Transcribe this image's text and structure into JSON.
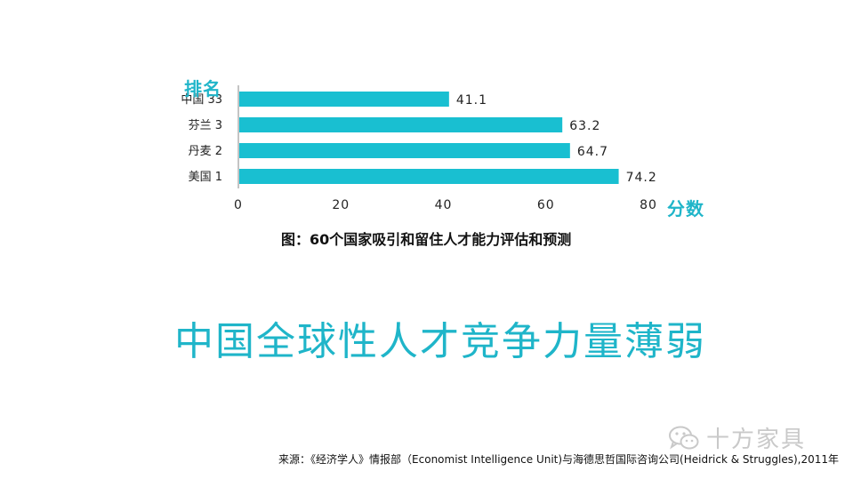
{
  "chart_data": {
    "type": "bar",
    "orientation": "horizontal",
    "categories": [
      "中国 33",
      "芬兰 3",
      "丹麦 2",
      "美国 1"
    ],
    "values": [
      41.1,
      63.2,
      64.7,
      74.2
    ],
    "data_labels": [
      "41.1",
      "63.2",
      "64.7",
      "74.2"
    ],
    "ylabel": "排名",
    "xlabel": "分数",
    "xlim": [
      0,
      80
    ],
    "xticks": [
      0,
      20,
      40,
      60,
      80
    ],
    "grid": false,
    "bar_color": "#19bfd1"
  },
  "caption": "图：60个国家吸引和留住人才能力评估和预测",
  "headline": "中国全球性人才竞争力量薄弱",
  "source": "来源：《经济学人》情报部（Economist Intelligence Unit)与海德思哲国际咨询公司(Heidrick & Struggles),2011年",
  "watermark": {
    "icon": "wechat-icon",
    "text": "十方家具"
  },
  "colors": {
    "accent": "#1fb5c9",
    "axis": "#8a8a8a",
    "text": "#111111"
  }
}
